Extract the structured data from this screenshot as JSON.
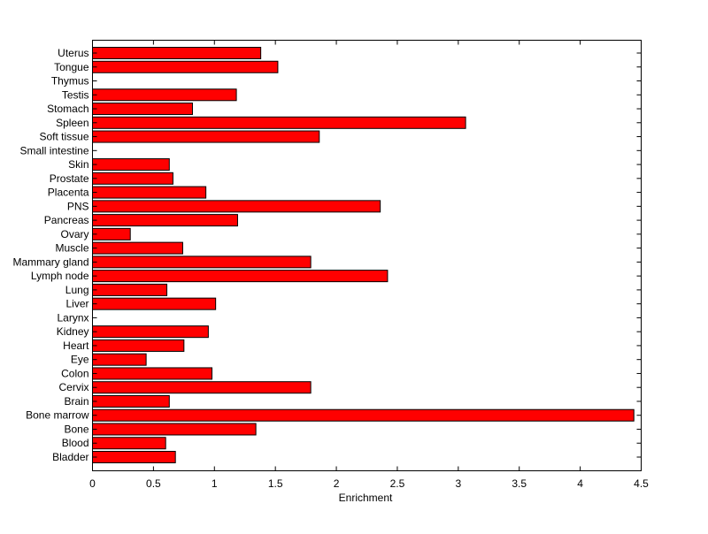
{
  "chart_data": {
    "type": "bar",
    "orientation": "horizontal",
    "title": "",
    "xlabel": "Enrichment",
    "ylabel": "",
    "xlim": [
      0,
      4.5
    ],
    "xticks": [
      0,
      0.5,
      1,
      1.5,
      2,
      2.5,
      3,
      3.5,
      4,
      4.5
    ],
    "xtick_labels": [
      "0",
      "0.5",
      "1",
      "1.5",
      "2",
      "2.5",
      "3",
      "3.5",
      "4",
      "4.5"
    ],
    "bar_color": "#ff0000",
    "categories": [
      "Bladder",
      "Blood",
      "Bone",
      "Bone marrow",
      "Brain",
      "Cervix",
      "Colon",
      "Eye",
      "Heart",
      "Kidney",
      "Larynx",
      "Liver",
      "Lung",
      "Lymph node",
      "Mammary gland",
      "Muscle",
      "Ovary",
      "Pancreas",
      "PNS",
      "Placenta",
      "Prostate",
      "Skin",
      "Small intestine",
      "Soft tissue",
      "Spleen",
      "Stomach",
      "Testis",
      "Thymus",
      "Tongue",
      "Uterus"
    ],
    "values": [
      0.68,
      0.6,
      1.34,
      4.44,
      0.63,
      1.79,
      0.98,
      0.44,
      0.75,
      0.95,
      0,
      1.01,
      0.61,
      2.42,
      1.79,
      0.74,
      0.31,
      1.19,
      2.36,
      0.93,
      0.66,
      0.63,
      0,
      1.86,
      3.06,
      0.82,
      1.18,
      0,
      1.52,
      1.38
    ]
  }
}
